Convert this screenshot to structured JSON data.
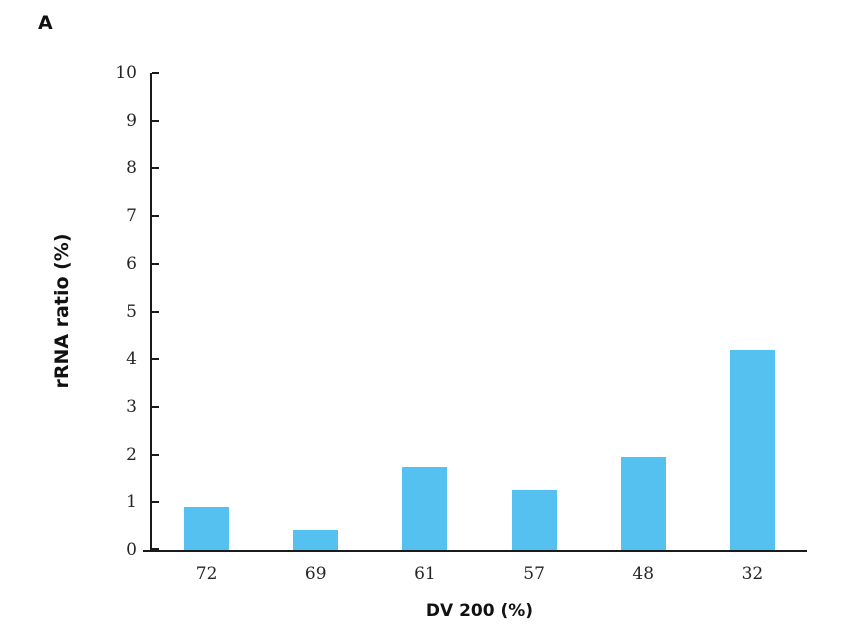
{
  "panel_label": "A",
  "axis_color": "#1a1a1a",
  "chart_data": {
    "type": "bar",
    "title": "",
    "categories": [
      "72",
      "69",
      "61",
      "57",
      "48",
      "32"
    ],
    "values": [
      0.9,
      0.42,
      1.73,
      1.25,
      1.95,
      4.2
    ],
    "xlabel": "DV 200 (%)",
    "ylabel": "rRNA ratio (%)",
    "ylim": [
      0,
      10
    ],
    "yticks": [
      0,
      1,
      2,
      3,
      4,
      5,
      6,
      7,
      8,
      9,
      10
    ],
    "bar_color": "#54C1F0",
    "grid": false,
    "legend_position": "none"
  }
}
